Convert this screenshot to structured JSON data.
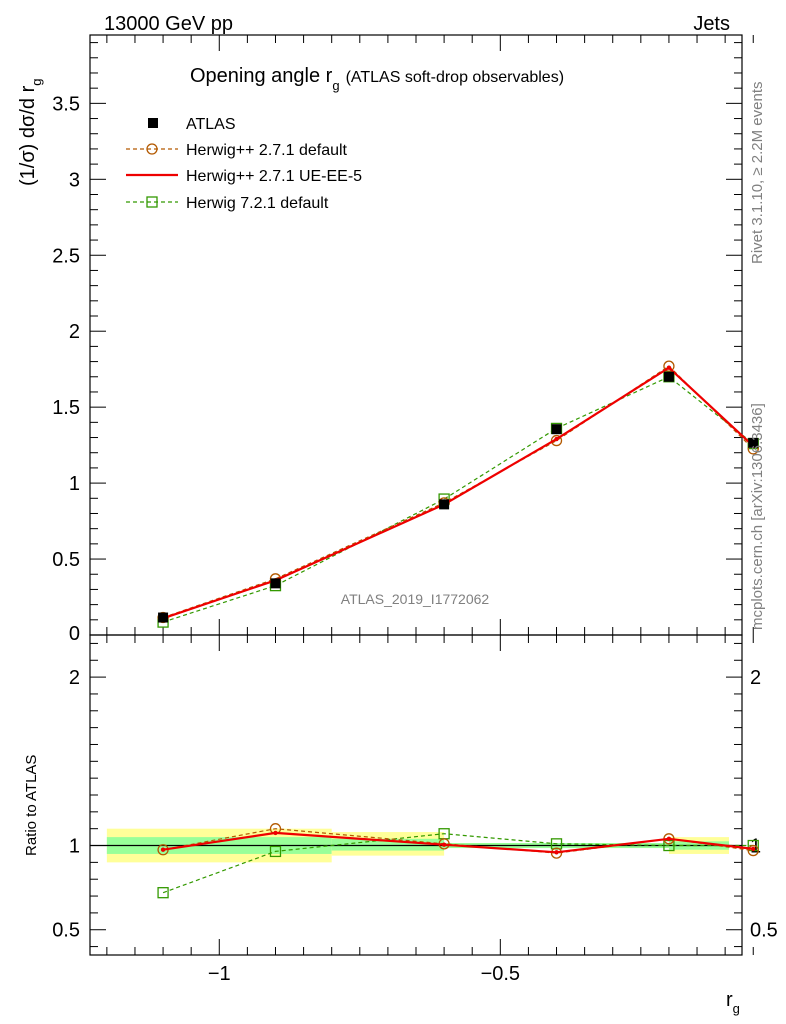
{
  "header": {
    "left": "13000 GeV pp",
    "right": "Jets"
  },
  "title": {
    "main": "Opening angle r",
    "sub": "g",
    "suffix": "(ATLAS soft-drop observables)"
  },
  "ylabel_main": "(1/σ) dσ/d r",
  "ylabel_main_sub": "g",
  "ylabel_ratio": "Ratio to ATLAS",
  "xlabel": "r",
  "xlabel_sub": "g",
  "side_text_top": "Rivet 3.1.10, ≥ 2.2M events",
  "side_text_bottom": "mcplots.cern.ch [arXiv:1306.3436]",
  "watermark": "ATLAS_2019_I1772062",
  "colors": {
    "atlas": "#000000",
    "herwig_default": "#b35900",
    "herwig_ueee5": "#ee0000",
    "herwig72": "#339900",
    "band_stat": "#99ff99",
    "band_total": "#ffff99"
  },
  "chart_data": [
    {
      "type": "line",
      "panel": "main",
      "x_edges": [
        -1.2,
        -0.8,
        -0.6,
        -0.4,
        -0.2,
        0.0
      ],
      "x_centers": [
        -1.1,
        -0.9,
        -0.6,
        -0.4,
        -0.2,
        -0.05
      ],
      "xlim": [
        -1.23,
        -0.07
      ],
      "ylim": [
        0,
        3.95
      ],
      "yticks": [
        0.5,
        1,
        1.5,
        2,
        2.5,
        3,
        3.5
      ],
      "ytick_labels": [
        "0.5",
        "1",
        "1.5",
        "2",
        "2.5",
        "3",
        "3.5"
      ],
      "series": [
        {
          "name": "ATLAS",
          "style": "marker",
          "x": [
            -1.1,
            -0.9,
            -0.6,
            -0.4,
            -0.2,
            -0.05
          ],
          "values": [
            0.115,
            0.34,
            0.86,
            1.355,
            1.7,
            1.265
          ]
        },
        {
          "name": "Herwig++ 2.7.1 default",
          "style": "dashed-circle",
          "x": [
            -1.1,
            -0.9,
            -0.6,
            -0.4,
            -0.2,
            -0.05
          ],
          "values": [
            0.115,
            0.37,
            0.87,
            1.28,
            1.77,
            1.225
          ]
        },
        {
          "name": "Herwig++ 2.7.1 UE-EE-5",
          "style": "solid",
          "x": [
            -1.1,
            -0.9,
            -0.6,
            -0.4,
            -0.2,
            -0.05
          ],
          "values": [
            0.11,
            0.36,
            0.86,
            1.29,
            1.76,
            1.245
          ]
        },
        {
          "name": "Herwig 7.2.1 default",
          "style": "dashed-square",
          "x": [
            -1.1,
            -0.9,
            -0.6,
            -0.4,
            -0.2,
            -0.05
          ],
          "values": [
            0.085,
            0.325,
            0.895,
            1.36,
            1.7,
            1.26
          ]
        }
      ]
    },
    {
      "type": "line",
      "panel": "ratio",
      "xlim": [
        -1.23,
        -0.07
      ],
      "ylim": [
        0.35,
        2.25
      ],
      "yticks": [
        0.5,
        1,
        2
      ],
      "ytick_labels": [
        "0.5",
        "1",
        "2"
      ],
      "xticks": [
        -1,
        -0.5
      ],
      "xtick_labels": [
        "−1",
        "−0.5"
      ],
      "bands": [
        {
          "x0": -1.2,
          "x1": -0.8,
          "stat": [
            0.95,
            1.05
          ],
          "total": [
            0.9,
            1.1
          ]
        },
        {
          "x0": -0.8,
          "x1": -0.6,
          "stat": [
            0.97,
            1.04
          ],
          "total": [
            0.94,
            1.08
          ]
        },
        {
          "x0": -0.6,
          "x1": -0.4,
          "stat": [
            0.985,
            1.015
          ],
          "total": [
            0.985,
            1.015
          ]
        },
        {
          "x0": -0.4,
          "x1": -0.2,
          "stat": [
            0.985,
            1.015
          ],
          "total": [
            0.985,
            1.015
          ]
        },
        {
          "x0": -0.2,
          "x1": 0.0,
          "stat": [
            0.975,
            1.025
          ],
          "total": [
            0.95,
            1.05
          ]
        }
      ],
      "series": [
        {
          "name": "Herwig++ 2.7.1 default",
          "style": "dashed-circle",
          "x": [
            -1.1,
            -0.9,
            -0.6,
            -0.4,
            -0.2,
            -0.05
          ],
          "values": [
            0.975,
            1.1,
            1.01,
            0.955,
            1.04,
            0.97
          ]
        },
        {
          "name": "Herwig++ 2.7.1 UE-EE-5",
          "style": "solid",
          "x": [
            -1.1,
            -0.9,
            -0.6,
            -0.4,
            -0.2,
            -0.05
          ],
          "values": [
            0.975,
            1.075,
            1.005,
            0.96,
            1.04,
            0.98
          ]
        },
        {
          "name": "Herwig 7.2.1 default",
          "style": "dashed-square",
          "x": [
            -1.1,
            -0.9,
            -0.6,
            -0.4,
            -0.2,
            -0.05
          ],
          "values": [
            0.72,
            0.965,
            1.07,
            1.01,
            1.0,
            1.0
          ]
        }
      ]
    }
  ]
}
